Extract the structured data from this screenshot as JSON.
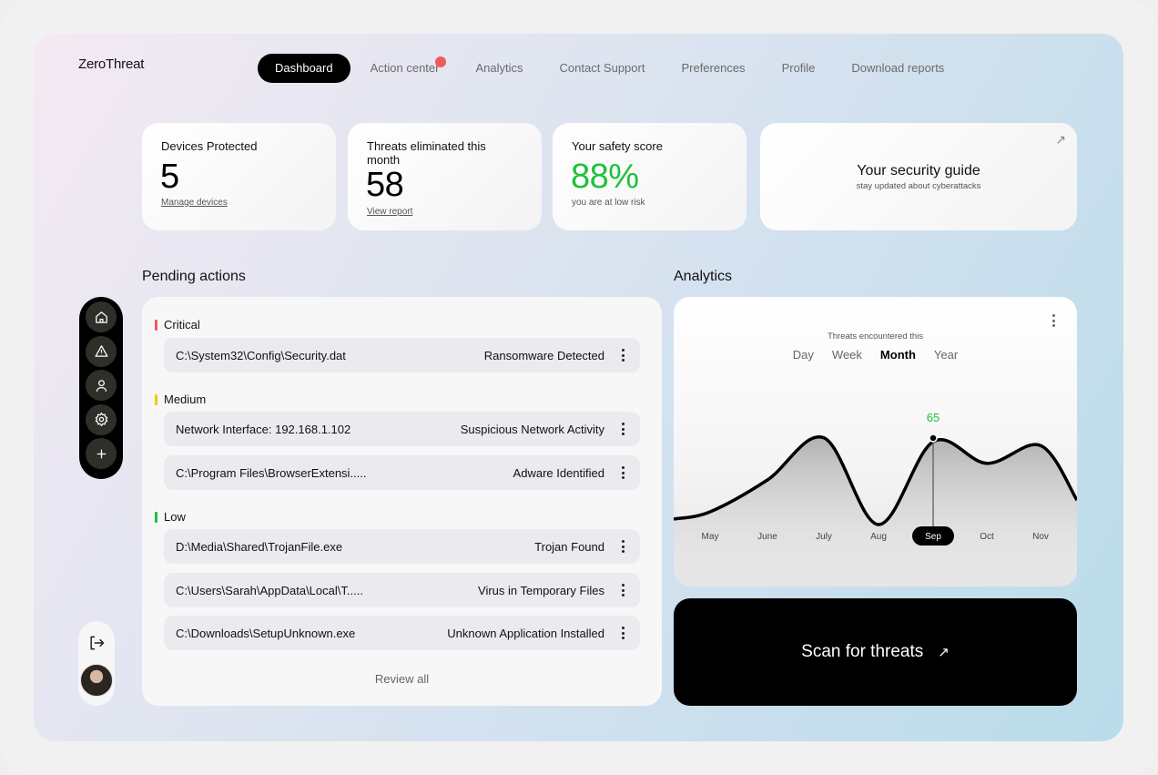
{
  "app": {
    "logo": "ZeroThreat"
  },
  "nav": {
    "items": [
      {
        "label": "Dashboard",
        "active": true
      },
      {
        "label": "Action center",
        "notification": true
      },
      {
        "label": "Analytics"
      },
      {
        "label": "Contact Support"
      },
      {
        "label": "Preferences"
      },
      {
        "label": "Profile"
      },
      {
        "label": "Download reports"
      }
    ]
  },
  "stats": {
    "devices": {
      "title": "Devices Protected",
      "value": "5",
      "link": "Manage devices"
    },
    "threats": {
      "title": "Threats eliminated this month",
      "value": "58",
      "link": "View report"
    },
    "safety": {
      "title": "Your safety score",
      "value": "88%",
      "sub": "you are at low risk",
      "color": "#1fc13d"
    }
  },
  "guide": {
    "title": "Your security guide",
    "sub": "stay updated about cyberattacks",
    "icon": "arrow-up-right-icon"
  },
  "sidebar": {
    "icons": [
      "home-icon",
      "warning-icon",
      "user-icon",
      "settings-icon",
      "plus-icon"
    ],
    "bottom": [
      "logout-icon",
      "avatar"
    ]
  },
  "pending": {
    "title": "Pending actions",
    "groups": [
      {
        "label": "Critical",
        "color": "#f05a5a",
        "rows": [
          {
            "path": "C:\\System32\\Config\\Security.dat",
            "threat": "Ransomware Detected"
          }
        ]
      },
      {
        "label": "Medium",
        "color": "#f5c518",
        "rows": [
          {
            "path": "Network Interface: 192.168.1.102",
            "threat": "Suspicious Network Activity"
          },
          {
            "path": "C:\\Program Files\\BrowserExtensi.....",
            "threat": "Adware Identified"
          }
        ]
      },
      {
        "label": "Low",
        "color": "#1fc13d",
        "rows": [
          {
            "path": "D:\\Media\\Shared\\TrojanFile.exe",
            "threat": "Trojan Found"
          },
          {
            "path": "C:\\Users\\Sarah\\AppData\\Local\\T.....",
            "threat": "Virus in Temporary Files"
          },
          {
            "path": "C:\\Downloads\\SetupUnknown.exe",
            "threat": "Unknown Application Installed"
          }
        ]
      }
    ],
    "review_all": "Review all"
  },
  "analytics": {
    "title": "Analytics",
    "caption": "Threats encountered this",
    "tabs": [
      "Day",
      "Week",
      "Month",
      "Year"
    ],
    "active_tab": "Month"
  },
  "chart_data": {
    "type": "area",
    "x": [
      "May",
      "June",
      "July",
      "Aug",
      "Sep",
      "Oct",
      "Nov"
    ],
    "highlight": {
      "category": "Sep",
      "value": 65
    },
    "values": [
      10,
      35,
      68,
      0,
      65,
      48,
      62
    ],
    "ylim": [
      0,
      100
    ],
    "grid": false
  },
  "scan": {
    "label": "Scan for threats",
    "icon": "arrow-up-right-icon"
  }
}
